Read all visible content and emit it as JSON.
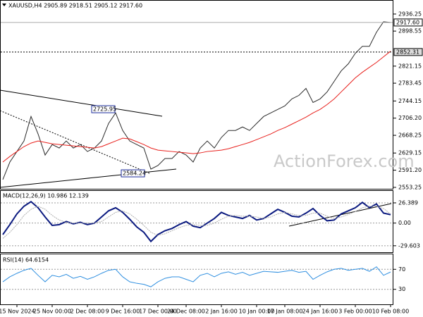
{
  "chart_data": [
    {
      "type": "line",
      "title": "XAUUSD,H4 2905.89 2918.51 2905.12 2917.60",
      "categories": [
        null,
        null,
        "15 Nov 2024",
        null,
        null,
        null,
        null,
        "25 Nov 00:00",
        null,
        null,
        null,
        null,
        "2 Dec 08:00",
        null,
        null,
        null,
        null,
        "9 Dec 16:00",
        null,
        null,
        null,
        null,
        "17 Dec 00:00",
        null,
        null,
        null,
        "24 Dec 08:00",
        null,
        null,
        null,
        null,
        "2 Jan 16:00",
        null,
        null,
        null,
        null,
        "10 Jan 00:00",
        null,
        null,
        null,
        "17 Jan 08:00",
        null,
        null,
        null,
        null,
        "24 Jan 16:00",
        null,
        null,
        null,
        null,
        "3 Feb 00:00",
        null,
        null,
        null,
        null,
        "10 Feb 08:00"
      ],
      "series": [
        {
          "color": "#2b2b2b",
          "values": [
            2570.5,
            2609.2,
            2632.5,
            2655.7,
            2709.9,
            2671.2,
            2624.7,
            2647.9,
            2640.2,
            2655.7,
            2640.2,
            2647.9,
            2632.5,
            2640.2,
            2655.7,
            2694.5,
            2717.7,
            2679.0,
            2655.7,
            2647.9,
            2640.2,
            2593.7,
            2601.5,
            2617.0,
            2617.0,
            2632.5,
            2624.7,
            2609.2,
            2640.2,
            2655.7,
            2640.2,
            2663.5,
            2679.0,
            2679.0,
            2686.7,
            2679.0,
            2694.5,
            2709.9,
            2717.7,
            2725.5,
            2733.2,
            2748.7,
            2756.5,
            2771.9,
            2740.9,
            2748.7,
            2764.2,
            2787.5,
            2810.7,
            2826.2,
            2849.5,
            2864.9,
            2864.9,
            2896.0,
            2919.2,
            2917.6
          ]
        },
        {
          "color": "#e8201c",
          "values": [
            2609.2,
            2621.6,
            2632.5,
            2643.3,
            2651.1,
            2655.7,
            2652.6,
            2649.5,
            2647.9,
            2646.4,
            2644.9,
            2643.3,
            2641.8,
            2640.2,
            2643.3,
            2649.5,
            2655.7,
            2661.9,
            2660.4,
            2654.2,
            2647.9,
            2640.2,
            2635.6,
            2634.0,
            2632.5,
            2630.9,
            2629.4,
            2627.8,
            2629.4,
            2632.5,
            2634.0,
            2635.6,
            2638.7,
            2643.3,
            2647.9,
            2652.6,
            2658.8,
            2665.0,
            2671.2,
            2679.0,
            2685.2,
            2692.9,
            2700.6,
            2708.4,
            2717.7,
            2725.5,
            2736.3,
            2748.7,
            2764.2,
            2779.7,
            2795.2,
            2807.6,
            2818.5,
            2829.3,
            2841.7,
            2854.1
          ]
        }
      ],
      "ylim": [
        2550.1,
        2965.7
      ],
      "yticks": [
        2936.25,
        2898.55,
        2821.15,
        2783.45,
        2744.15,
        {
          "value": 2706.2,
          "label": "2706.20"
        },
        2668.25,
        2629.15,
        {
          "value": 2591.2,
          "label": "2591.20"
        },
        2553.25
      ],
      "price_labels": [
        {
          "value": 2917.6,
          "label": "2917.60"
        },
        {
          "value": 2852.31,
          "label": "2852.31"
        }
      ],
      "annotations": [
        2725.95,
        2584.24
      ],
      "watermark": "ActionForex.com"
    },
    {
      "type": "line",
      "title": "MACD(12,26,9) 10.986 12.139",
      "series": [
        {
          "color": "#0b1a80",
          "values": [
            -15,
            -2,
            12,
            22,
            28,
            20,
            8,
            -3,
            -2,
            2,
            -1,
            1,
            -2,
            0,
            8,
            16,
            20,
            14,
            5,
            -5,
            -12,
            -24,
            -15,
            -10,
            -7,
            -2,
            2,
            -4,
            -6,
            0,
            6,
            14,
            10,
            8,
            6,
            10,
            4,
            6,
            12,
            18,
            14,
            9,
            8,
            13,
            19,
            10,
            3,
            4,
            12,
            16,
            20,
            27,
            20,
            25,
            13,
            11
          ]
        },
        {
          "color": "#b0b0b0",
          "values": [
            -20,
            -12,
            -2,
            10,
            18,
            22,
            18,
            10,
            4,
            1,
            0,
            0,
            0,
            0,
            2,
            8,
            14,
            16,
            12,
            5,
            -3,
            -12,
            -16,
            -14,
            -10,
            -6,
            -3,
            -2,
            -3,
            -3,
            0,
            5,
            9,
            10,
            9,
            9,
            8,
            6,
            8,
            12,
            14,
            12,
            10,
            10,
            13,
            13,
            9,
            6,
            8,
            11,
            15,
            20,
            22,
            22,
            19,
            12
          ]
        }
      ],
      "ylim": [
        -38,
        42
      ],
      "yticks": [
        26.389,
        {
          "value": 0,
          "label": "0.00"
        },
        -29.603
      ]
    },
    {
      "type": "line",
      "title": "RSI(14) 64.6154",
      "series": [
        {
          "color": "#2f8fe0",
          "values": [
            45,
            55,
            62,
            68,
            72,
            58,
            45,
            58,
            55,
            60,
            52,
            56,
            50,
            55,
            62,
            68,
            70,
            55,
            45,
            42,
            40,
            35,
            45,
            52,
            55,
            55,
            50,
            45,
            58,
            62,
            55,
            62,
            65,
            60,
            64,
            58,
            62,
            66,
            65,
            64,
            66,
            68,
            64,
            66,
            50,
            58,
            65,
            70,
            72,
            68,
            70,
            72,
            66,
            75,
            58,
            64.6154
          ]
        }
      ],
      "ylim": [
        0,
        100
      ],
      "yticks": [
        70,
        30
      ]
    }
  ]
}
